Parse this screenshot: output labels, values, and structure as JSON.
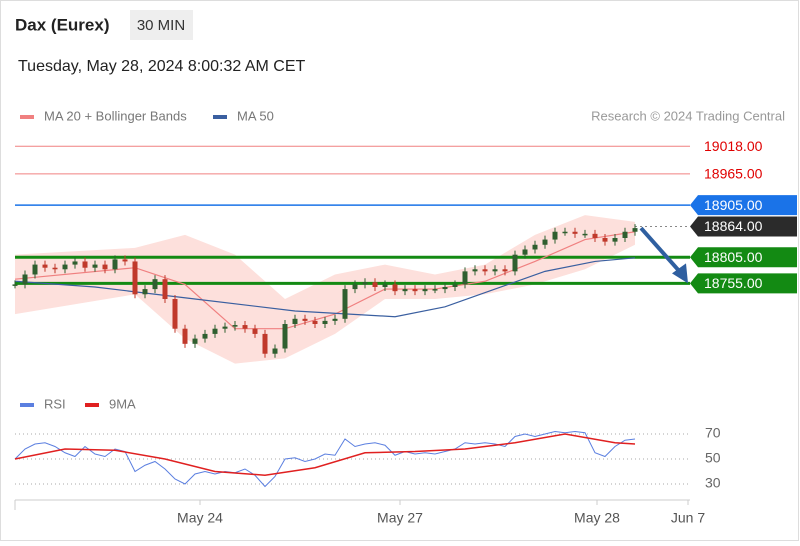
{
  "chart_data": [
    {
      "type": "candlestick",
      "title": "Dax (Eurex)",
      "interval": "30 MIN",
      "subtitle": "Tuesday, May 28, 2024 8:00:32 AM CET",
      "source": "Research © 2024 Trading Central",
      "xlim": [
        0,
        67.5
      ],
      "xticks": [
        {
          "value": 18.5,
          "label": "May 24"
        },
        {
          "value": 38.5,
          "label": "May 27"
        },
        {
          "value": 58.2,
          "label": "May 28"
        },
        {
          "value": 67.3,
          "label": "Jun 7"
        }
      ],
      "ylim": [
        18560,
        19030
      ],
      "up_color": "#2f5f2f",
      "down_color": "#c0392b",
      "values": [
        18753,
        18772,
        18791,
        18785,
        18782,
        18791,
        18797,
        18785,
        18791,
        18782,
        18801,
        18797,
        18734,
        18744,
        18763,
        18725,
        18668,
        18639,
        18649,
        18658,
        18668,
        18672,
        18675,
        18668,
        18658,
        18620,
        18630,
        18677,
        18687,
        18683,
        18677,
        18683,
        18687,
        18744,
        18753,
        18757,
        18748,
        18753,
        18740,
        18744,
        18740,
        18744,
        18744,
        18748,
        18753,
        18778,
        18782,
        18778,
        18782,
        18778,
        18810,
        18820,
        18829,
        18839,
        18854,
        18854,
        18850,
        18850,
        18842,
        18835,
        18842,
        18854,
        18861
      ],
      "series": [
        {
          "name": "MA 20 + Bollinger Bands",
          "color": "#f08080",
          "band_color": "#fde0dc",
          "x": [
            0,
            12,
            17,
            22,
            27,
            32,
            37,
            42,
            47,
            52,
            57,
            62
          ],
          "values": [
            18763,
            18785,
            18753,
            18668,
            18668,
            18696,
            18744,
            18744,
            18759,
            18797,
            18839,
            18854
          ],
          "upper": [
            18810,
            18823,
            18848,
            18810,
            18725,
            18772,
            18791,
            18772,
            18791,
            18848,
            18886,
            18873
          ],
          "lower": [
            18696,
            18734,
            18649,
            18601,
            18611,
            18658,
            18725,
            18725,
            18734,
            18753,
            18782,
            18829
          ]
        },
        {
          "name": "MA 50",
          "color": "#3a5fa0",
          "x": [
            0,
            8,
            18,
            28,
            38,
            43,
            48,
            53,
            58,
            62
          ],
          "values": [
            18759,
            18748,
            18725,
            18702,
            18691,
            18710,
            18744,
            18778,
            18797,
            18804
          ]
        }
      ],
      "levels": [
        {
          "value": 19018,
          "label": "19018.00",
          "color": "#f08080",
          "text_color": "#e00000",
          "style": "plain"
        },
        {
          "value": 18965,
          "label": "18965.00",
          "color": "#f08080",
          "text_color": "#e00000",
          "style": "plain"
        },
        {
          "value": 18905,
          "label": "18905.00",
          "color": "#1a73e8",
          "text_color": "#ffffff",
          "style": "box"
        },
        {
          "value": 18864,
          "label": "18864.00",
          "color": "#2b2b2b",
          "text_color": "#ffffff",
          "style": "box-dotted"
        },
        {
          "value": 18805,
          "label": "18805.00",
          "color": "#138a13",
          "text_color": "#ffffff",
          "style": "box-thick"
        },
        {
          "value": 18755,
          "label": "18755.00",
          "color": "#138a13",
          "text_color": "#ffffff",
          "style": "box-thick"
        }
      ]
    },
    {
      "type": "line",
      "ylim": [
        22,
        78
      ],
      "yticks": [
        70,
        50,
        30
      ],
      "series": [
        {
          "name": "RSI",
          "color": "#5b7fe0",
          "values": [
            50,
            58,
            62,
            63,
            60,
            55,
            52,
            60,
            54,
            52,
            58,
            56,
            40,
            45,
            48,
            42,
            34,
            30,
            38,
            40,
            38,
            40,
            39,
            42,
            37,
            28,
            36,
            50,
            51,
            48,
            50,
            54,
            53,
            66,
            60,
            62,
            63,
            61,
            53,
            56,
            54,
            55,
            54,
            56,
            58,
            63,
            62,
            63,
            62,
            60,
            68,
            70,
            68,
            70,
            72,
            71,
            72,
            71,
            55,
            52,
            60,
            65,
            66
          ]
        },
        {
          "name": "9MA",
          "color": "#e02020",
          "x": [
            0,
            5,
            10,
            15,
            20,
            25,
            30,
            35,
            40,
            45,
            50,
            55,
            60,
            62
          ],
          "values": [
            50,
            58,
            57,
            50,
            40,
            37,
            43,
            55,
            56,
            58,
            63,
            70,
            63,
            62
          ]
        }
      ]
    }
  ]
}
